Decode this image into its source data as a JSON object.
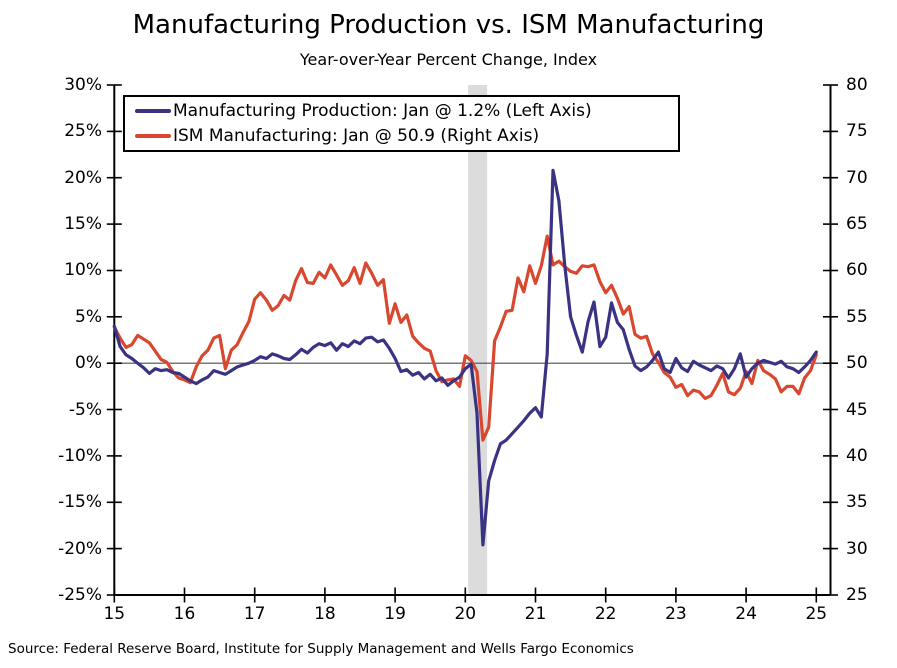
{
  "chart_data": {
    "type": "line",
    "title": "Manufacturing Production vs. ISM Manufacturing",
    "subtitle": "Year-over-Year Percent Change, Index",
    "source": "Source: Federal Reserve Board, Institute for Supply Management and Wells Fargo Economics",
    "x_unit": "monthly, Jan 2015 - Jan 2025",
    "x_axis": {
      "tick_values": [
        2015,
        2016,
        2017,
        2018,
        2019,
        2020,
        2021,
        2022,
        2023,
        2024,
        2025
      ],
      "tick_labels": [
        "15",
        "16",
        "17",
        "18",
        "19",
        "20",
        "21",
        "22",
        "23",
        "24",
        "25"
      ],
      "range": [
        2015.0,
        2025.2
      ]
    },
    "left_axis": {
      "max": 30,
      "min": -25,
      "tick_values": [
        30,
        25,
        20,
        15,
        10,
        5,
        0,
        -5,
        -10,
        -15,
        -20,
        -25
      ],
      "tick_labels": [
        "30%",
        "25%",
        "20%",
        "15%",
        "10%",
        "5%",
        "0%",
        "-5%",
        "-10%",
        "-15%",
        "-20%",
        "-25%"
      ]
    },
    "right_axis": {
      "max": 80,
      "min": 25,
      "tick_values": [
        80,
        75,
        70,
        65,
        60,
        55,
        50,
        45,
        40,
        35,
        30,
        25
      ],
      "tick_labels": [
        "80",
        "75",
        "70",
        "65",
        "60",
        "55",
        "50",
        "45",
        "40",
        "35",
        "30",
        "25"
      ]
    },
    "baseline": {
      "left_value": 0,
      "right_value": 50,
      "color": "#4d4d4d"
    },
    "recession_band": {
      "start": 2020.04,
      "end": 2020.31,
      "color": "#dcdcdc"
    },
    "grid": "off",
    "legend_position": "top-left",
    "series": [
      {
        "id": "manufacturing-production",
        "name": "Manufacturing Production: Jan @ 1.2% (Left Axis)",
        "axis": "left",
        "color": "#3a3383",
        "latest_label": "Jan @ 1.2%",
        "monthly_values": [
          4.0,
          1.8,
          0.9,
          0.5,
          0.0,
          -0.5,
          -1.1,
          -0.6,
          -0.8,
          -0.7,
          -1.0,
          -1.1,
          -1.5,
          -1.9,
          -2.2,
          -1.8,
          -1.5,
          -0.8,
          -1.0,
          -1.2,
          -0.8,
          -0.4,
          -0.2,
          0.0,
          0.3,
          0.7,
          0.5,
          1.0,
          0.8,
          0.5,
          0.4,
          0.9,
          1.5,
          1.1,
          1.7,
          2.1,
          1.9,
          2.2,
          1.4,
          2.1,
          1.8,
          2.4,
          2.1,
          2.7,
          2.8,
          2.3,
          2.5,
          1.6,
          0.5,
          -0.9,
          -0.7,
          -1.3,
          -1.0,
          -1.7,
          -1.2,
          -1.9,
          -1.6,
          -2.4,
          -1.9,
          -1.5,
          -0.6,
          -0.1,
          -5.4,
          -19.6,
          -12.7,
          -10.5,
          -8.7,
          -8.3,
          -7.6,
          -6.9,
          -6.2,
          -5.4,
          -4.8,
          -5.8,
          1.0,
          20.8,
          17.5,
          10.5,
          5.0,
          3.0,
          1.2,
          4.5,
          6.6,
          1.8,
          2.8,
          6.5,
          4.4,
          3.6,
          1.5,
          -0.3,
          -0.8,
          -0.4,
          0.3,
          1.2,
          -0.6,
          -1.0,
          0.5,
          -0.5,
          -0.9,
          0.2,
          -0.2,
          -0.5,
          -0.8,
          -0.3,
          -0.6,
          -1.6,
          -0.6,
          1.0,
          -1.5,
          -0.6,
          0.0,
          0.3,
          0.1,
          -0.1,
          0.2,
          -0.4,
          -0.6,
          -1.0,
          -0.4,
          0.3,
          1.2
        ]
      },
      {
        "id": "ism-manufacturing",
        "name": "ISM Manufacturing: Jan @ 50.9 (Right Axis)",
        "axis": "right",
        "color": "#d9472e",
        "latest_label": "Jan @ 50.9",
        "monthly_values": [
          53.9,
          52.7,
          51.7,
          52.0,
          53.0,
          52.6,
          52.2,
          51.3,
          50.4,
          50.1,
          49.1,
          48.4,
          48.2,
          47.9,
          49.6,
          50.8,
          51.4,
          52.7,
          53.0,
          49.4,
          51.4,
          52.0,
          53.3,
          54.5,
          56.9,
          57.6,
          56.8,
          55.7,
          56.2,
          57.3,
          56.8,
          58.9,
          60.2,
          58.7,
          58.6,
          59.8,
          59.2,
          60.6,
          59.5,
          58.4,
          58.9,
          60.3,
          58.6,
          60.8,
          59.7,
          58.4,
          59.0,
          54.3,
          56.4,
          54.4,
          55.2,
          52.9,
          52.2,
          51.6,
          51.3,
          49.2,
          48.0,
          48.2,
          48.3,
          47.5,
          50.8,
          50.3,
          49.1,
          41.7,
          43.1,
          52.4,
          53.9,
          55.6,
          55.7,
          59.2,
          57.7,
          60.5,
          58.6,
          60.5,
          63.7,
          60.6,
          61.0,
          60.4,
          59.9,
          59.7,
          60.5,
          60.4,
          60.6,
          58.8,
          57.6,
          58.4,
          57.0,
          55.3,
          56.1,
          53.1,
          52.7,
          52.9,
          51.0,
          50.1,
          49.0,
          48.5,
          47.4,
          47.7,
          46.5,
          47.1,
          46.9,
          46.2,
          46.5,
          47.6,
          48.9,
          46.9,
          46.6,
          47.3,
          49.1,
          47.8,
          50.3,
          49.2,
          48.8,
          48.3,
          46.9,
          47.5,
          47.5,
          46.7,
          48.4,
          49.2,
          50.9
        ]
      }
    ]
  }
}
